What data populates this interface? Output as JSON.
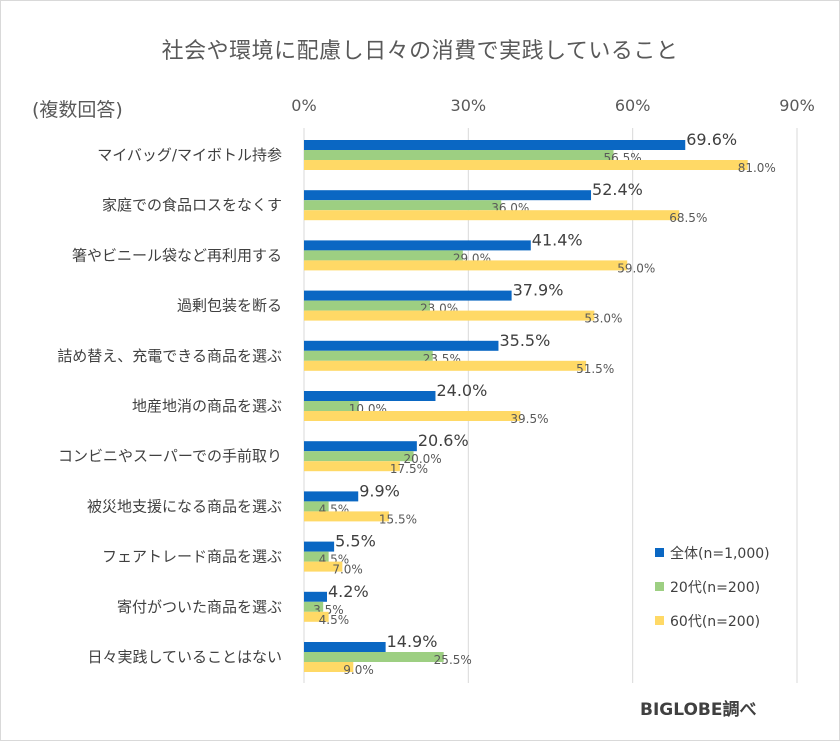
{
  "title": "社会や環境に配慮し日々の消費で実践していること",
  "subtitle": "(複数回答)",
  "source": "BIGLOBE調べ",
  "chart_data": {
    "type": "bar",
    "orientation": "horizontal",
    "x_ticks": [
      "0%",
      "30%",
      "60%",
      "90%"
    ],
    "xlim": [
      0,
      90
    ],
    "grid": true,
    "legend_position": "bottom-right",
    "categories": [
      "マイバッグ/マイボトル持参",
      "家庭での食品ロスをなくす",
      "箸やビニール袋など再利用する",
      "過剰包装を断る",
      "詰め替え、充電できる商品を選ぶ",
      "地産地消の商品を選ぶ",
      "コンビニやスーパーでの手前取り",
      "被災地支援になる商品を選ぶ",
      "フェアトレード商品を選ぶ",
      "寄付がついた商品を選ぶ",
      "日々実践していることはない"
    ],
    "series": [
      {
        "name": "全体(n=1,000)",
        "color": "#0a67c3",
        "values": [
          69.6,
          52.4,
          41.4,
          37.9,
          35.5,
          24.0,
          20.6,
          9.9,
          5.5,
          4.2,
          14.9
        ],
        "labels": [
          "69.6%",
          "52.4%",
          "41.4%",
          "37.9%",
          "35.5%",
          "24.0%",
          "20.6%",
          "9.9%",
          "5.5%",
          "4.2%",
          "14.9%"
        ]
      },
      {
        "name": "20代(n=200)",
        "color": "#9dcf82",
        "values": [
          56.5,
          36.0,
          29.0,
          23.0,
          23.5,
          10.0,
          20.0,
          4.5,
          4.5,
          3.5,
          25.5
        ],
        "labels": [
          "56.5%",
          "36.0%",
          "29.0%",
          "23.0%",
          "23.5%",
          "10.0%",
          "20.0%",
          "4.5%",
          "4.5%",
          "3.5%",
          "25.5%"
        ]
      },
      {
        "name": "60代(n=200)",
        "color": "#ffd966",
        "values": [
          81.0,
          68.5,
          59.0,
          53.0,
          51.5,
          39.5,
          17.5,
          15.5,
          7.0,
          4.5,
          9.0
        ],
        "labels": [
          "81.0%",
          "68.5%",
          "59.0%",
          "53.0%",
          "51.5%",
          "39.5%",
          "17.5%",
          "15.5%",
          "7.0%",
          "4.5%",
          "9.0%"
        ]
      }
    ]
  }
}
